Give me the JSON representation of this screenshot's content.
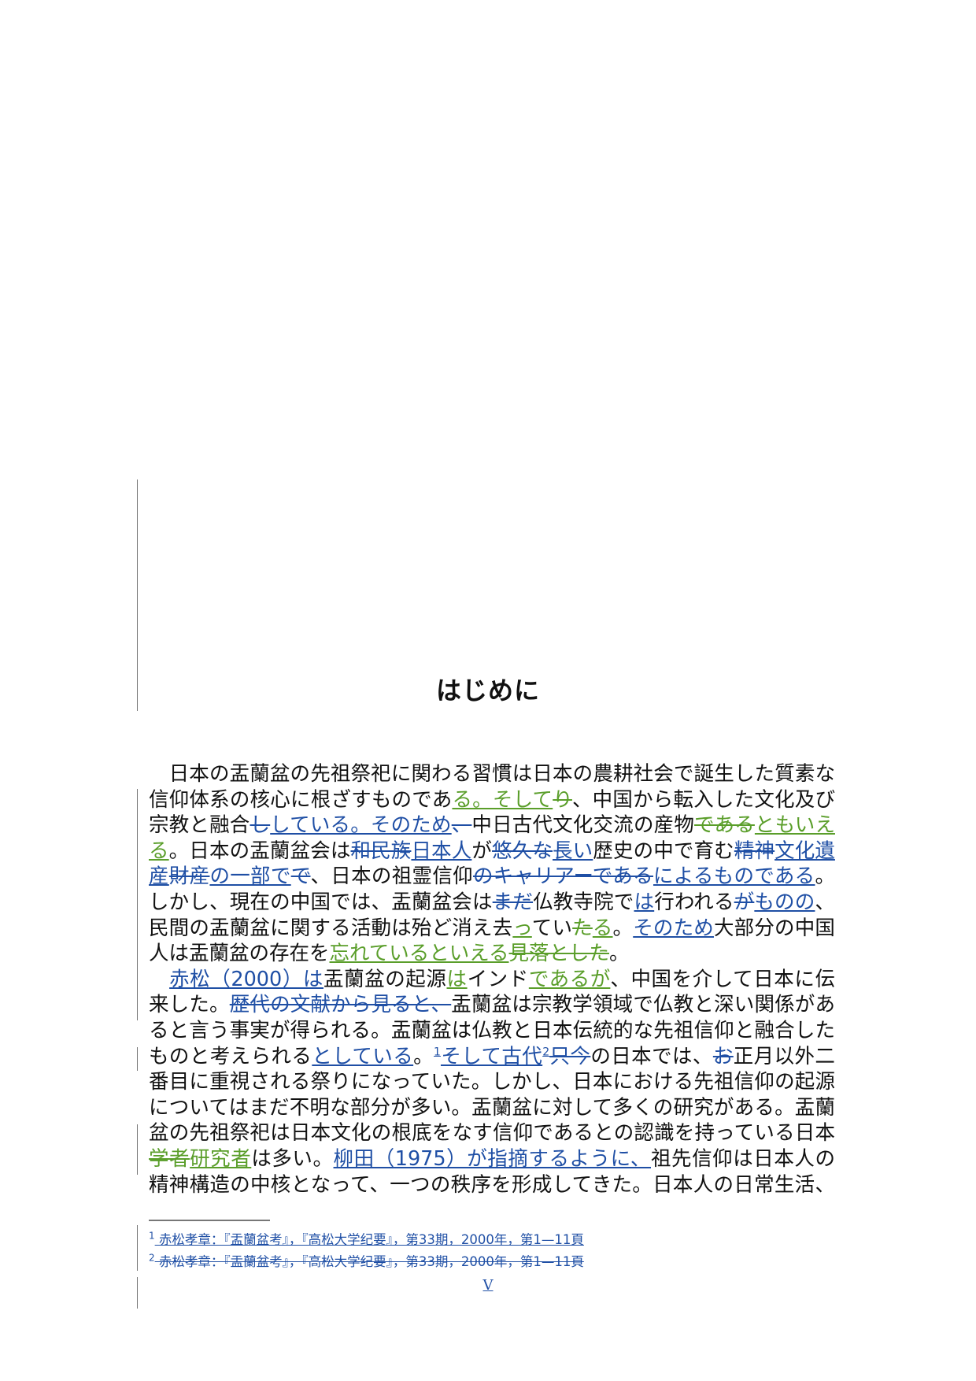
{
  "colors": {
    "insert_blue": "#1f4fa5",
    "insert_green": "#5a9e2a",
    "text": "#111111"
  },
  "title": "はじめに",
  "lines": [
    [
      {
        "k": "n",
        "t": "　日本の盂蘭盆の先祖祭祀に関わる習慣は日本の農耕社会で誕生した質素な"
      }
    ],
    [
      {
        "k": "n",
        "t": "信仰体系の核心に根ざすものであ"
      },
      {
        "k": "gi",
        "t": "る。そして"
      },
      {
        "k": "gd",
        "t": "り"
      },
      {
        "k": "n",
        "t": "、中国から転入した文化及び"
      }
    ],
    [
      {
        "k": "n",
        "t": "宗教と融合"
      },
      {
        "k": "bd",
        "t": "し"
      },
      {
        "k": "bi",
        "t": "している。そのため"
      },
      {
        "k": "bd",
        "t": "、"
      },
      {
        "k": "n",
        "t": "中日古代文化交流の産物"
      },
      {
        "k": "gd",
        "t": "である"
      },
      {
        "k": "gi",
        "t": "ともいえ"
      }
    ],
    [
      {
        "k": "gi",
        "t": "る"
      },
      {
        "k": "n",
        "t": "。日本の盂蘭盆会は"
      },
      {
        "k": "bd",
        "t": "和民族"
      },
      {
        "k": "bi",
        "t": "日本人"
      },
      {
        "k": "n",
        "t": "が"
      },
      {
        "k": "bd",
        "t": "悠久な"
      },
      {
        "k": "bi",
        "t": "長い"
      },
      {
        "k": "n",
        "t": "歴史の中で育む"
      },
      {
        "k": "bd",
        "t": "精神"
      },
      {
        "k": "bi",
        "t": "文化遺"
      }
    ],
    [
      {
        "k": "bi",
        "t": "産"
      },
      {
        "k": "bd",
        "t": "財産"
      },
      {
        "k": "bi",
        "t": "の一部で"
      },
      {
        "k": "bd",
        "t": "で"
      },
      {
        "k": "n",
        "t": "、日本の祖霊信仰"
      },
      {
        "k": "bd",
        "t": "のキャリアーである"
      },
      {
        "k": "bi",
        "t": "によるものである"
      },
      {
        "k": "n",
        "t": "。"
      }
    ],
    [
      {
        "k": "n",
        "t": "しかし、現在の中国では、盂蘭盆会は"
      },
      {
        "k": "bd",
        "t": "まだ"
      },
      {
        "k": "n",
        "t": "仏教寺院で"
      },
      {
        "k": "bi",
        "t": "は"
      },
      {
        "k": "n",
        "t": "行われる"
      },
      {
        "k": "bd",
        "t": "が"
      },
      {
        "k": "bi",
        "t": "ものの"
      },
      {
        "k": "n",
        "t": "、"
      }
    ],
    [
      {
        "k": "n",
        "t": "民間の盂蘭盆に関する活動は殆ど消え去"
      },
      {
        "k": "gi",
        "t": "っ"
      },
      {
        "k": "n",
        "t": "てい"
      },
      {
        "k": "gd",
        "t": "た"
      },
      {
        "k": "gi",
        "t": "る"
      },
      {
        "k": "n",
        "t": "。"
      },
      {
        "k": "bi",
        "t": "そのため"
      },
      {
        "k": "n",
        "t": "大部分の中国"
      }
    ],
    [
      {
        "k": "n",
        "t": "人は盂蘭盆の存在を"
      },
      {
        "k": "gi",
        "t": "忘れているといえる"
      },
      {
        "k": "gd",
        "t": "見落とした"
      },
      {
        "k": "n",
        "t": "。"
      }
    ],
    [
      {
        "k": "n",
        "t": "　"
      },
      {
        "k": "bi",
        "t": "赤松（2000）は"
      },
      {
        "k": "n",
        "t": "盂蘭盆の起源"
      },
      {
        "k": "gi",
        "t": "は"
      },
      {
        "k": "n",
        "t": "インド"
      },
      {
        "k": "gi",
        "t": "であるが"
      },
      {
        "k": "n",
        "t": "、中国を介して日本に伝"
      }
    ],
    [
      {
        "k": "n",
        "t": "来した。"
      },
      {
        "k": "bd",
        "t": "歴代の文献から見ると、"
      },
      {
        "k": "n",
        "t": "盂蘭盆は宗教学領域で仏教と深い関係があ"
      }
    ],
    [
      {
        "k": "n",
        "t": "ると言う事実が得られる。盂蘭盆は仏教と日本伝統的な先祖信仰と融合した"
      }
    ],
    [
      {
        "k": "n",
        "t": "ものと考えられる"
      },
      {
        "k": "bi",
        "t": "としている"
      },
      {
        "k": "n",
        "t": "。"
      },
      {
        "k": "bsup",
        "t": "1"
      },
      {
        "k": "bi",
        "t": "そして古代"
      },
      {
        "k": "bsup",
        "t": "2"
      },
      {
        "k": "bd",
        "t": "只今"
      },
      {
        "k": "n",
        "t": "の日本では、"
      },
      {
        "k": "bd",
        "t": "お"
      },
      {
        "k": "n",
        "t": "正月以外二"
      }
    ],
    [
      {
        "k": "n",
        "t": "番目に重視される祭りになっていた。しかし、日本における先祖信仰の起源"
      }
    ],
    [
      {
        "k": "n",
        "t": "についてはまだ不明な部分が多い。盂蘭盆に対して多くの研究がある。盂蘭"
      }
    ],
    [
      {
        "k": "n",
        "t": "盆の先祖祭祀は日本文化の根底をなす信仰であるとの認識を持っている日本"
      }
    ],
    [
      {
        "k": "gd",
        "t": "学者"
      },
      {
        "k": "gi",
        "t": "研究者"
      },
      {
        "k": "n",
        "t": "は多い。"
      },
      {
        "k": "bi",
        "t": "柳田（1975）が指摘するように、"
      },
      {
        "k": "n",
        "t": "祖先信仰は日本人の"
      }
    ],
    [
      {
        "k": "n",
        "t": "精神構造の中核となって、一つの秩序を形成してきた。日本人の日常生活、"
      }
    ]
  ],
  "last_lines": [
    7
  ],
  "footnotes": [
    {
      "num": "1",
      "text": "赤松孝章：『盂蘭盆考』，『高松大学纪要』，第33期，2000年，第1—11頁",
      "change": "inserted"
    },
    {
      "num": "2",
      "text": "赤松孝章：『盂蘭盆考』，『高松大学纪要』，第33期，2000年，第1—11頁",
      "change": "deleted"
    }
  ],
  "page_number": "V"
}
